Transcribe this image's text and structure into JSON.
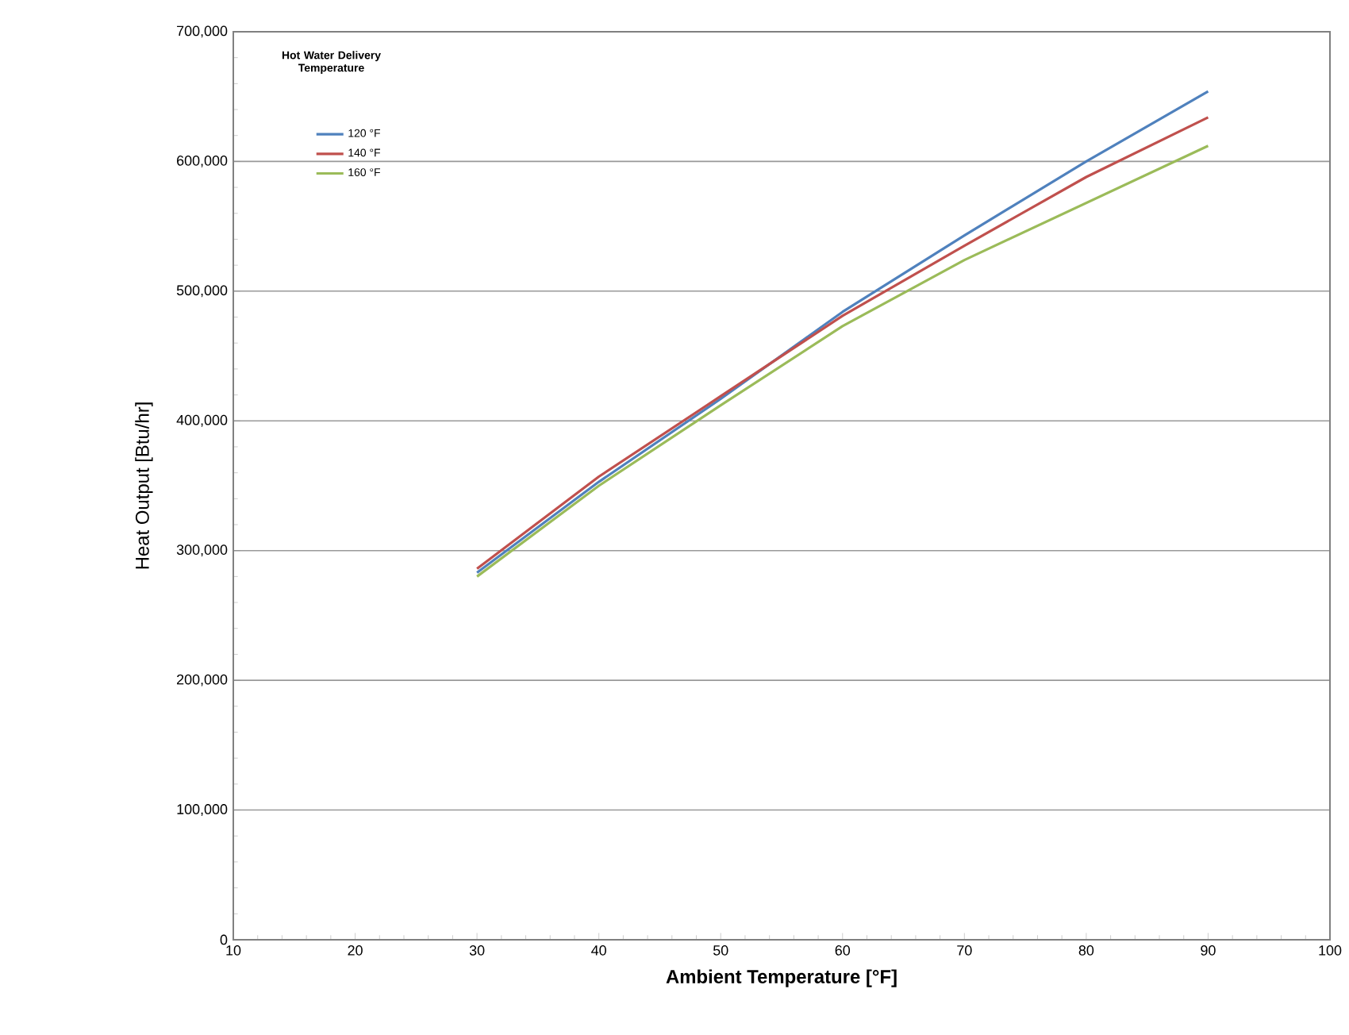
{
  "chart_data": {
    "type": "line",
    "xlabel": "Ambient Temperature [°F]",
    "ylabel": "Heat Output [Btu/hr]",
    "legend_title": "Hot Water Delivery Temperature",
    "x": [
      30,
      40,
      50,
      60,
      70,
      80,
      90
    ],
    "series": [
      {
        "name": "120 °F",
        "color": "#4f81bd",
        "values": [
          283000,
          353000,
          417000,
          484000,
          543000,
          600000,
          654000
        ]
      },
      {
        "name": "140 °F",
        "color": "#c0504d",
        "values": [
          286000,
          357000,
          419000,
          481000,
          535000,
          588000,
          634000
        ]
      },
      {
        "name": "160 °F",
        "color": "#9bbb59",
        "values": [
          280000,
          350000,
          412000,
          473000,
          524000,
          568000,
          612000
        ]
      }
    ],
    "xlim": [
      10,
      100
    ],
    "xticks": [
      10,
      20,
      30,
      40,
      50,
      60,
      70,
      80,
      90,
      100
    ],
    "ylim": [
      0,
      700000
    ],
    "yticks": [
      0,
      {
        "value": 100000,
        "label": "100,000"
      },
      {
        "value": 200000,
        "label": "200,000"
      },
      {
        "value": 300000,
        "label": "300,000"
      },
      {
        "value": 400000,
        "label": "400,000"
      },
      {
        "value": 500000,
        "label": "500,000"
      },
      {
        "value": 600000,
        "label": "600,000"
      },
      {
        "value": 700000,
        "label": "700,000"
      }
    ],
    "grid": "y",
    "legend": "top left",
    "marker": "none",
    "line_style": "solid"
  }
}
